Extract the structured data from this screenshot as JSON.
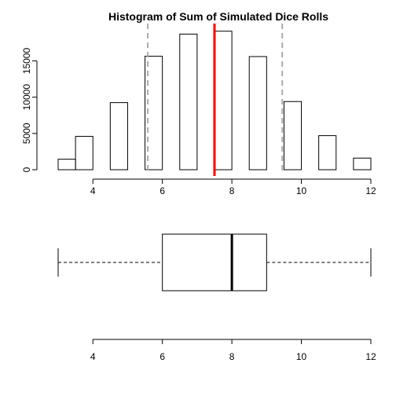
{
  "chart_data": [
    {
      "type": "bar",
      "title": "Histogram of Sum of Simulated Dice Rolls",
      "xlabel": "",
      "ylabel": "",
      "bins": [
        {
          "from": 3.0,
          "to": 3.5,
          "count": 1450
        },
        {
          "from": 3.5,
          "to": 4.0,
          "count": 4600
        },
        {
          "from": 4.0,
          "to": 4.5,
          "count": 0
        },
        {
          "from": 4.5,
          "to": 5.0,
          "count": 9250
        },
        {
          "from": 5.0,
          "to": 5.5,
          "count": 0
        },
        {
          "from": 5.5,
          "to": 6.0,
          "count": 15650
        },
        {
          "from": 6.0,
          "to": 6.5,
          "count": 0
        },
        {
          "from": 6.5,
          "to": 7.0,
          "count": 18700
        },
        {
          "from": 7.0,
          "to": 7.5,
          "count": 0
        },
        {
          "from": 7.5,
          "to": 8.0,
          "count": 19100
        },
        {
          "from": 8.0,
          "to": 8.5,
          "count": 0
        },
        {
          "from": 8.5,
          "to": 9.0,
          "count": 15600
        },
        {
          "from": 9.0,
          "to": 9.5,
          "count": 0
        },
        {
          "from": 9.5,
          "to": 10.0,
          "count": 9400
        },
        {
          "from": 10.0,
          "to": 10.5,
          "count": 0
        },
        {
          "from": 10.5,
          "to": 11.0,
          "count": 4700
        },
        {
          "from": 11.0,
          "to": 11.5,
          "count": 0
        },
        {
          "from": 11.5,
          "to": 12.0,
          "count": 1600
        }
      ],
      "mean_line": {
        "x": 7.5,
        "color": "#ff0000"
      },
      "sd_lines": {
        "x": [
          5.58,
          9.45
        ],
        "color": "#aaaaaa",
        "style": "dashed"
      },
      "xlim": [
        3,
        12
      ],
      "ylim": [
        0,
        19500
      ],
      "x_ticks": [
        "4",
        "6",
        "8",
        "10",
        "12"
      ],
      "y_ticks": [
        "0",
        "5000",
        "10000",
        "15000"
      ],
      "grid": false
    },
    {
      "type": "box",
      "orientation": "horizontal",
      "min": 3,
      "q1": 6,
      "median": 8,
      "q3": 9,
      "max": 12,
      "xlim": [
        3,
        12
      ],
      "x_ticks": [
        "4",
        "6",
        "8",
        "10",
        "12"
      ],
      "grid": false
    }
  ]
}
